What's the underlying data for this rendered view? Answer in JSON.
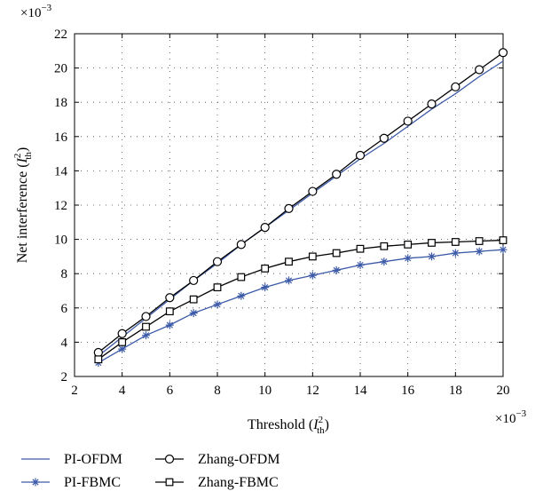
{
  "chart_data": {
    "type": "line",
    "title": "",
    "xlabel": "Threshold (I²th)",
    "xlabel_parts": {
      "main": "Threshold (",
      "var": "I",
      "sup": "2",
      "sub": "th",
      "close": ")"
    },
    "ylabel": "Net interference (I²th)",
    "ylabel_parts": {
      "main": "Net interference (",
      "var": "I",
      "sup": "2",
      "sub": "th",
      "close": ")"
    },
    "x_multiplier": "×10−3",
    "y_multiplier": "×10−3",
    "x_multiplier_parts": {
      "base": "×10",
      "exp": "−3"
    },
    "y_multiplier_parts": {
      "base": "×10",
      "exp": "−3"
    },
    "xlim": [
      2,
      20
    ],
    "ylim": [
      2,
      22
    ],
    "xticks": [
      2,
      4,
      6,
      8,
      10,
      12,
      14,
      16,
      18,
      20
    ],
    "yticks": [
      2,
      4,
      6,
      8,
      10,
      12,
      14,
      16,
      18,
      20,
      22
    ],
    "xtick_labels": [
      "2",
      "4",
      "6",
      "8",
      "10",
      "12",
      "14",
      "16",
      "18",
      "20"
    ],
    "ytick_labels": [
      "2",
      "4",
      "6",
      "8",
      "10",
      "12",
      "14",
      "16",
      "18",
      "20",
      "22"
    ],
    "grid": true,
    "legend_position": "bottom",
    "x": [
      3,
      4,
      5,
      6,
      7,
      8,
      9,
      10,
      11,
      12,
      13,
      14,
      15,
      16,
      17,
      18,
      19,
      20
    ],
    "series": [
      {
        "name": "PI-OFDM",
        "color": "#3c5aa8",
        "marker": "none",
        "values": [
          3.2,
          4.3,
          5.4,
          6.5,
          7.6,
          8.6,
          9.7,
          10.7,
          11.7,
          12.7,
          13.7,
          14.7,
          15.6,
          16.6,
          17.6,
          18.5,
          19.5,
          20.4
        ]
      },
      {
        "name": "Zhang-OFDM",
        "color": "#000000",
        "marker": "circle",
        "values": [
          3.4,
          4.5,
          5.5,
          6.6,
          7.6,
          8.7,
          9.7,
          10.7,
          11.8,
          12.8,
          13.8,
          14.9,
          15.9,
          16.9,
          17.9,
          18.9,
          19.9,
          20.9
        ]
      },
      {
        "name": "PI-FBMC",
        "color": "#3c5aa8",
        "marker": "asterisk",
        "values": [
          2.8,
          3.6,
          4.4,
          5.0,
          5.7,
          6.2,
          6.7,
          7.2,
          7.6,
          7.9,
          8.2,
          8.5,
          8.7,
          8.9,
          9.0,
          9.2,
          9.3,
          9.4
        ]
      },
      {
        "name": "Zhang-FBMC",
        "color": "#000000",
        "marker": "square",
        "values": [
          3.0,
          4.0,
          4.9,
          5.8,
          6.5,
          7.2,
          7.8,
          8.3,
          8.7,
          9.0,
          9.2,
          9.45,
          9.6,
          9.7,
          9.8,
          9.85,
          9.9,
          9.95
        ]
      }
    ]
  }
}
